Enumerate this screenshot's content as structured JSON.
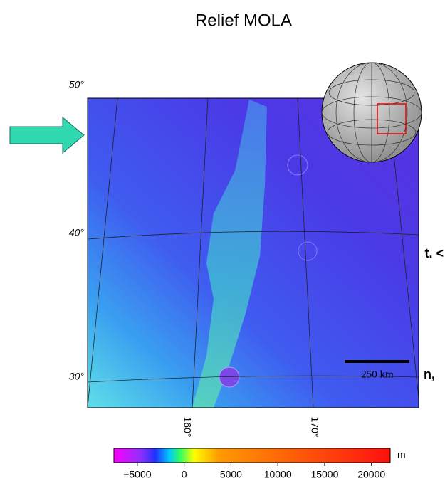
{
  "title": "Relief MOLA",
  "map": {
    "lat_labels": [
      "50°",
      "40°",
      "30°"
    ],
    "lon_labels": [
      "160°",
      "170°"
    ],
    "scale_bar": "250 km"
  },
  "colorbar": {
    "unit": "m",
    "range": [
      -7500,
      22000
    ],
    "ticks": [
      {
        "value": -5000,
        "label": "−5000"
      },
      0,
      5000,
      10000,
      15000,
      20000
    ]
  },
  "side_text": [
    "t. <",
    "n,"
  ]
}
